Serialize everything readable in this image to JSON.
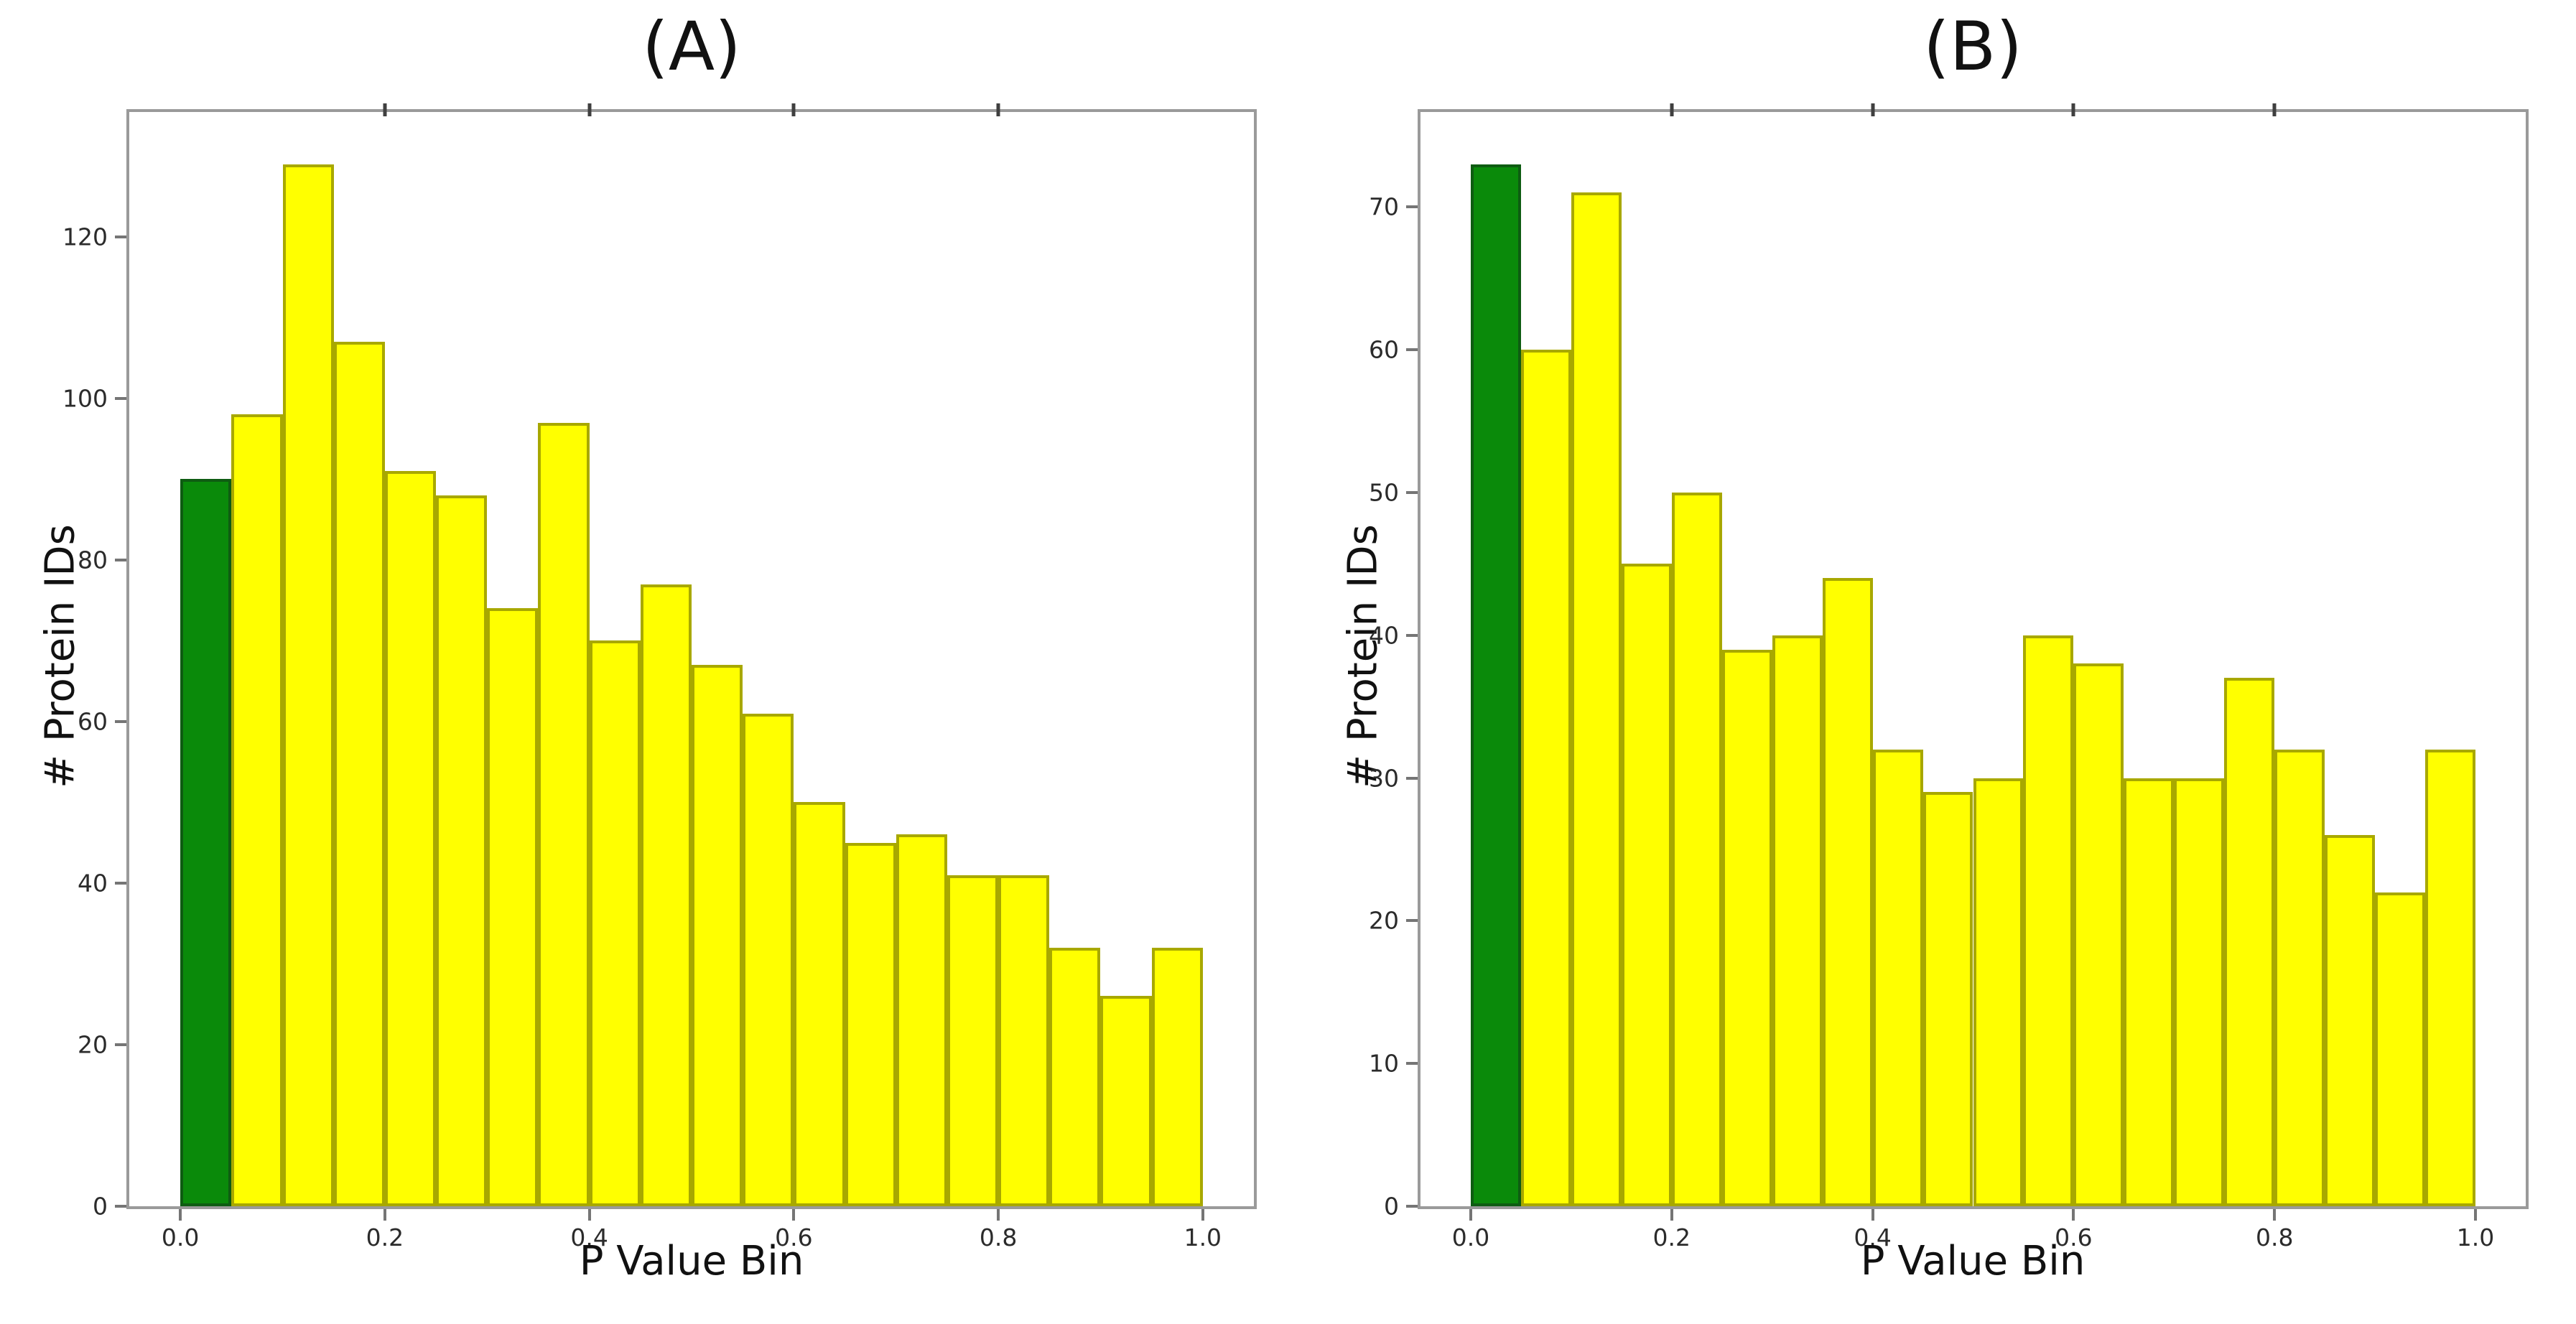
{
  "figure": {
    "background": "#ffffff",
    "spine_color": "#9a9a9a",
    "tick_mark_color": "#757575",
    "top_tick_color": "#3f3f3f",
    "text_color": "#111111",
    "tick_label_color": "#2b2b2b"
  },
  "chart_data": [
    {
      "id": "A",
      "type": "bar",
      "subtype": "histogram",
      "title": "(A)",
      "xlabel": "P Value Bin",
      "ylabel": "# Protein IDs",
      "bins": {
        "start": 0.0,
        "width": 0.05,
        "count": 20
      },
      "categories": [
        "0.00-0.05",
        "0.05-0.10",
        "0.10-0.15",
        "0.15-0.20",
        "0.20-0.25",
        "0.25-0.30",
        "0.30-0.35",
        "0.35-0.40",
        "0.40-0.45",
        "0.45-0.50",
        "0.50-0.55",
        "0.55-0.60",
        "0.60-0.65",
        "0.65-0.70",
        "0.70-0.75",
        "0.75-0.80",
        "0.80-0.85",
        "0.85-0.90",
        "0.90-0.95",
        "0.95-1.00"
      ],
      "values": [
        90,
        98,
        129,
        107,
        91,
        88,
        74,
        97,
        70,
        77,
        67,
        61,
        50,
        45,
        46,
        41,
        41,
        32,
        26,
        32
      ],
      "bar_fill": "#ffff00",
      "bar_edge": "#a8a800",
      "highlight": {
        "index": 0,
        "fill": "#0a8a0a",
        "edge": "#0e5c12"
      },
      "xticks": [
        0.0,
        0.2,
        0.4,
        0.6,
        0.8,
        1.0
      ],
      "yticks": [
        0,
        20,
        40,
        60,
        80,
        100,
        120
      ],
      "xticks_top": [
        0.2,
        0.4,
        0.6,
        0.8
      ],
      "xlim": [
        -0.05,
        1.05
      ],
      "ylim": [
        0,
        135.45
      ],
      "grid": false,
      "legend": null
    },
    {
      "id": "B",
      "type": "bar",
      "subtype": "histogram",
      "title": "(B)",
      "xlabel": "P Value Bin",
      "ylabel": "# Protein IDs",
      "bins": {
        "start": 0.0,
        "width": 0.05,
        "count": 20
      },
      "categories": [
        "0.00-0.05",
        "0.05-0.10",
        "0.10-0.15",
        "0.15-0.20",
        "0.20-0.25",
        "0.25-0.30",
        "0.30-0.35",
        "0.35-0.40",
        "0.40-0.45",
        "0.45-0.50",
        "0.50-0.55",
        "0.55-0.60",
        "0.60-0.65",
        "0.65-0.70",
        "0.70-0.75",
        "0.75-0.80",
        "0.80-0.85",
        "0.85-0.90",
        "0.90-0.95",
        "0.95-1.00"
      ],
      "values": [
        73,
        60,
        71,
        45,
        50,
        39,
        40,
        44,
        32,
        29,
        30,
        40,
        38,
        30,
        30,
        37,
        32,
        26,
        22,
        32
      ],
      "bar_fill": "#ffff00",
      "bar_edge": "#a8a800",
      "highlight": {
        "index": 0,
        "fill": "#0a8a0a",
        "edge": "#0e5c12"
      },
      "xticks": [
        0.0,
        0.2,
        0.4,
        0.6,
        0.8,
        1.0
      ],
      "yticks": [
        0,
        10,
        20,
        30,
        40,
        50,
        60,
        70
      ],
      "xticks_top": [
        0.2,
        0.4,
        0.6,
        0.8
      ],
      "xlim": [
        -0.05,
        1.05
      ],
      "ylim": [
        0,
        76.65
      ],
      "grid": false,
      "legend": null
    }
  ]
}
